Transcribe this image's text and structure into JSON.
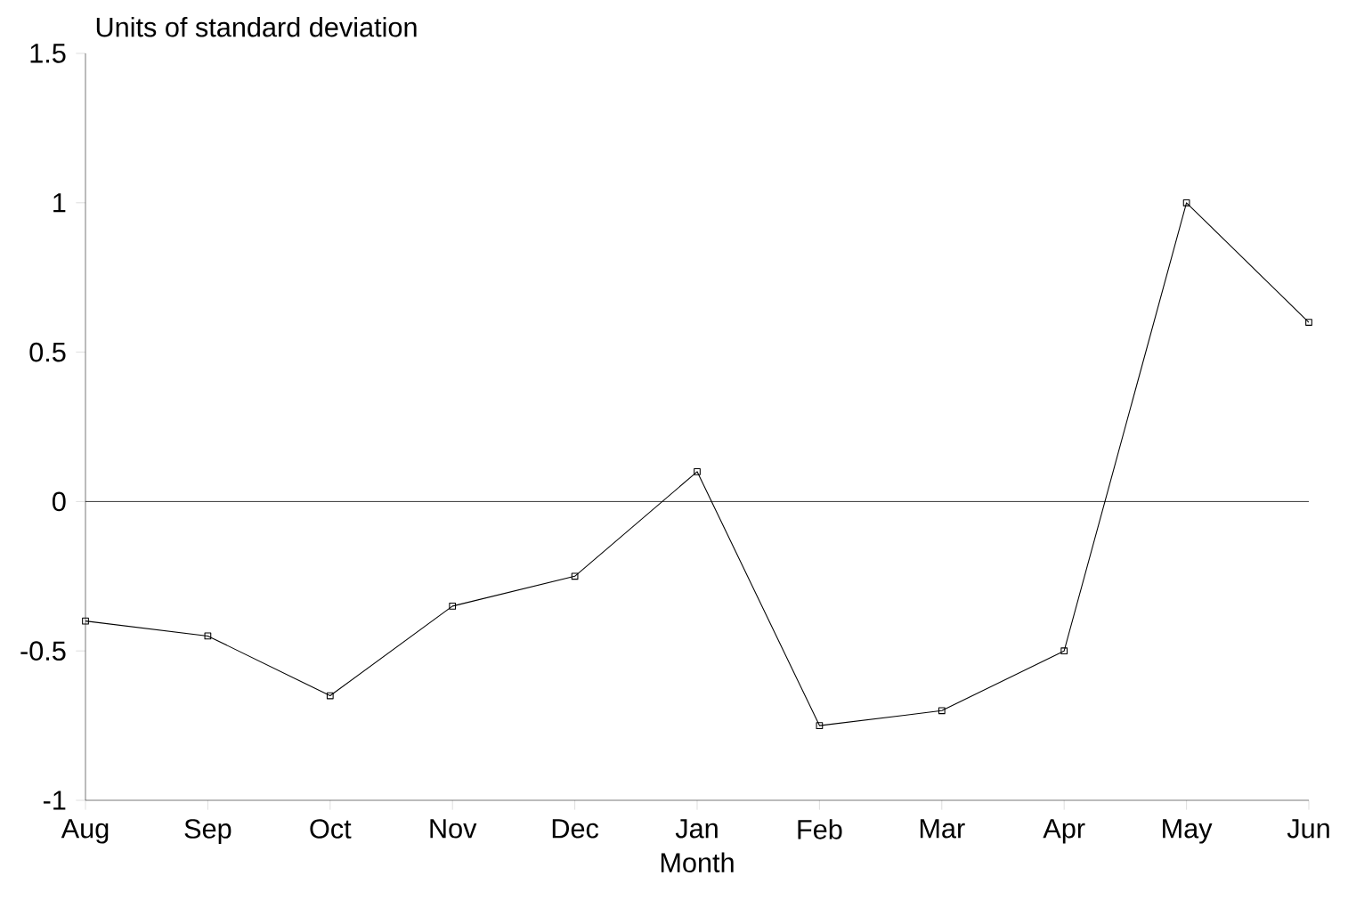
{
  "chart_data": {
    "type": "line",
    "xlabel": "Month",
    "ylabel": "Units of standard deviation",
    "categories": [
      "Aug",
      "Sep",
      "Oct",
      "Nov",
      "Dec",
      "Jan",
      "Feb",
      "Mar",
      "Apr",
      "May",
      "Jun"
    ],
    "series": [
      {
        "color": "#000000",
        "values": [
          -0.4,
          -0.45,
          -0.65,
          -0.35,
          -0.25,
          0.1,
          -0.75,
          -0.7,
          -0.5,
          1.0,
          0.6
        ]
      }
    ],
    "ylim": [
      -1,
      1.5
    ],
    "yticks": [
      -1,
      -0.5,
      0,
      0.5,
      1,
      1.5
    ],
    "ref_lines": [
      {
        "axis": "y",
        "value": 0,
        "color": "#000000"
      }
    ],
    "marker": "square",
    "line_style": "solid",
    "grid": false
  }
}
